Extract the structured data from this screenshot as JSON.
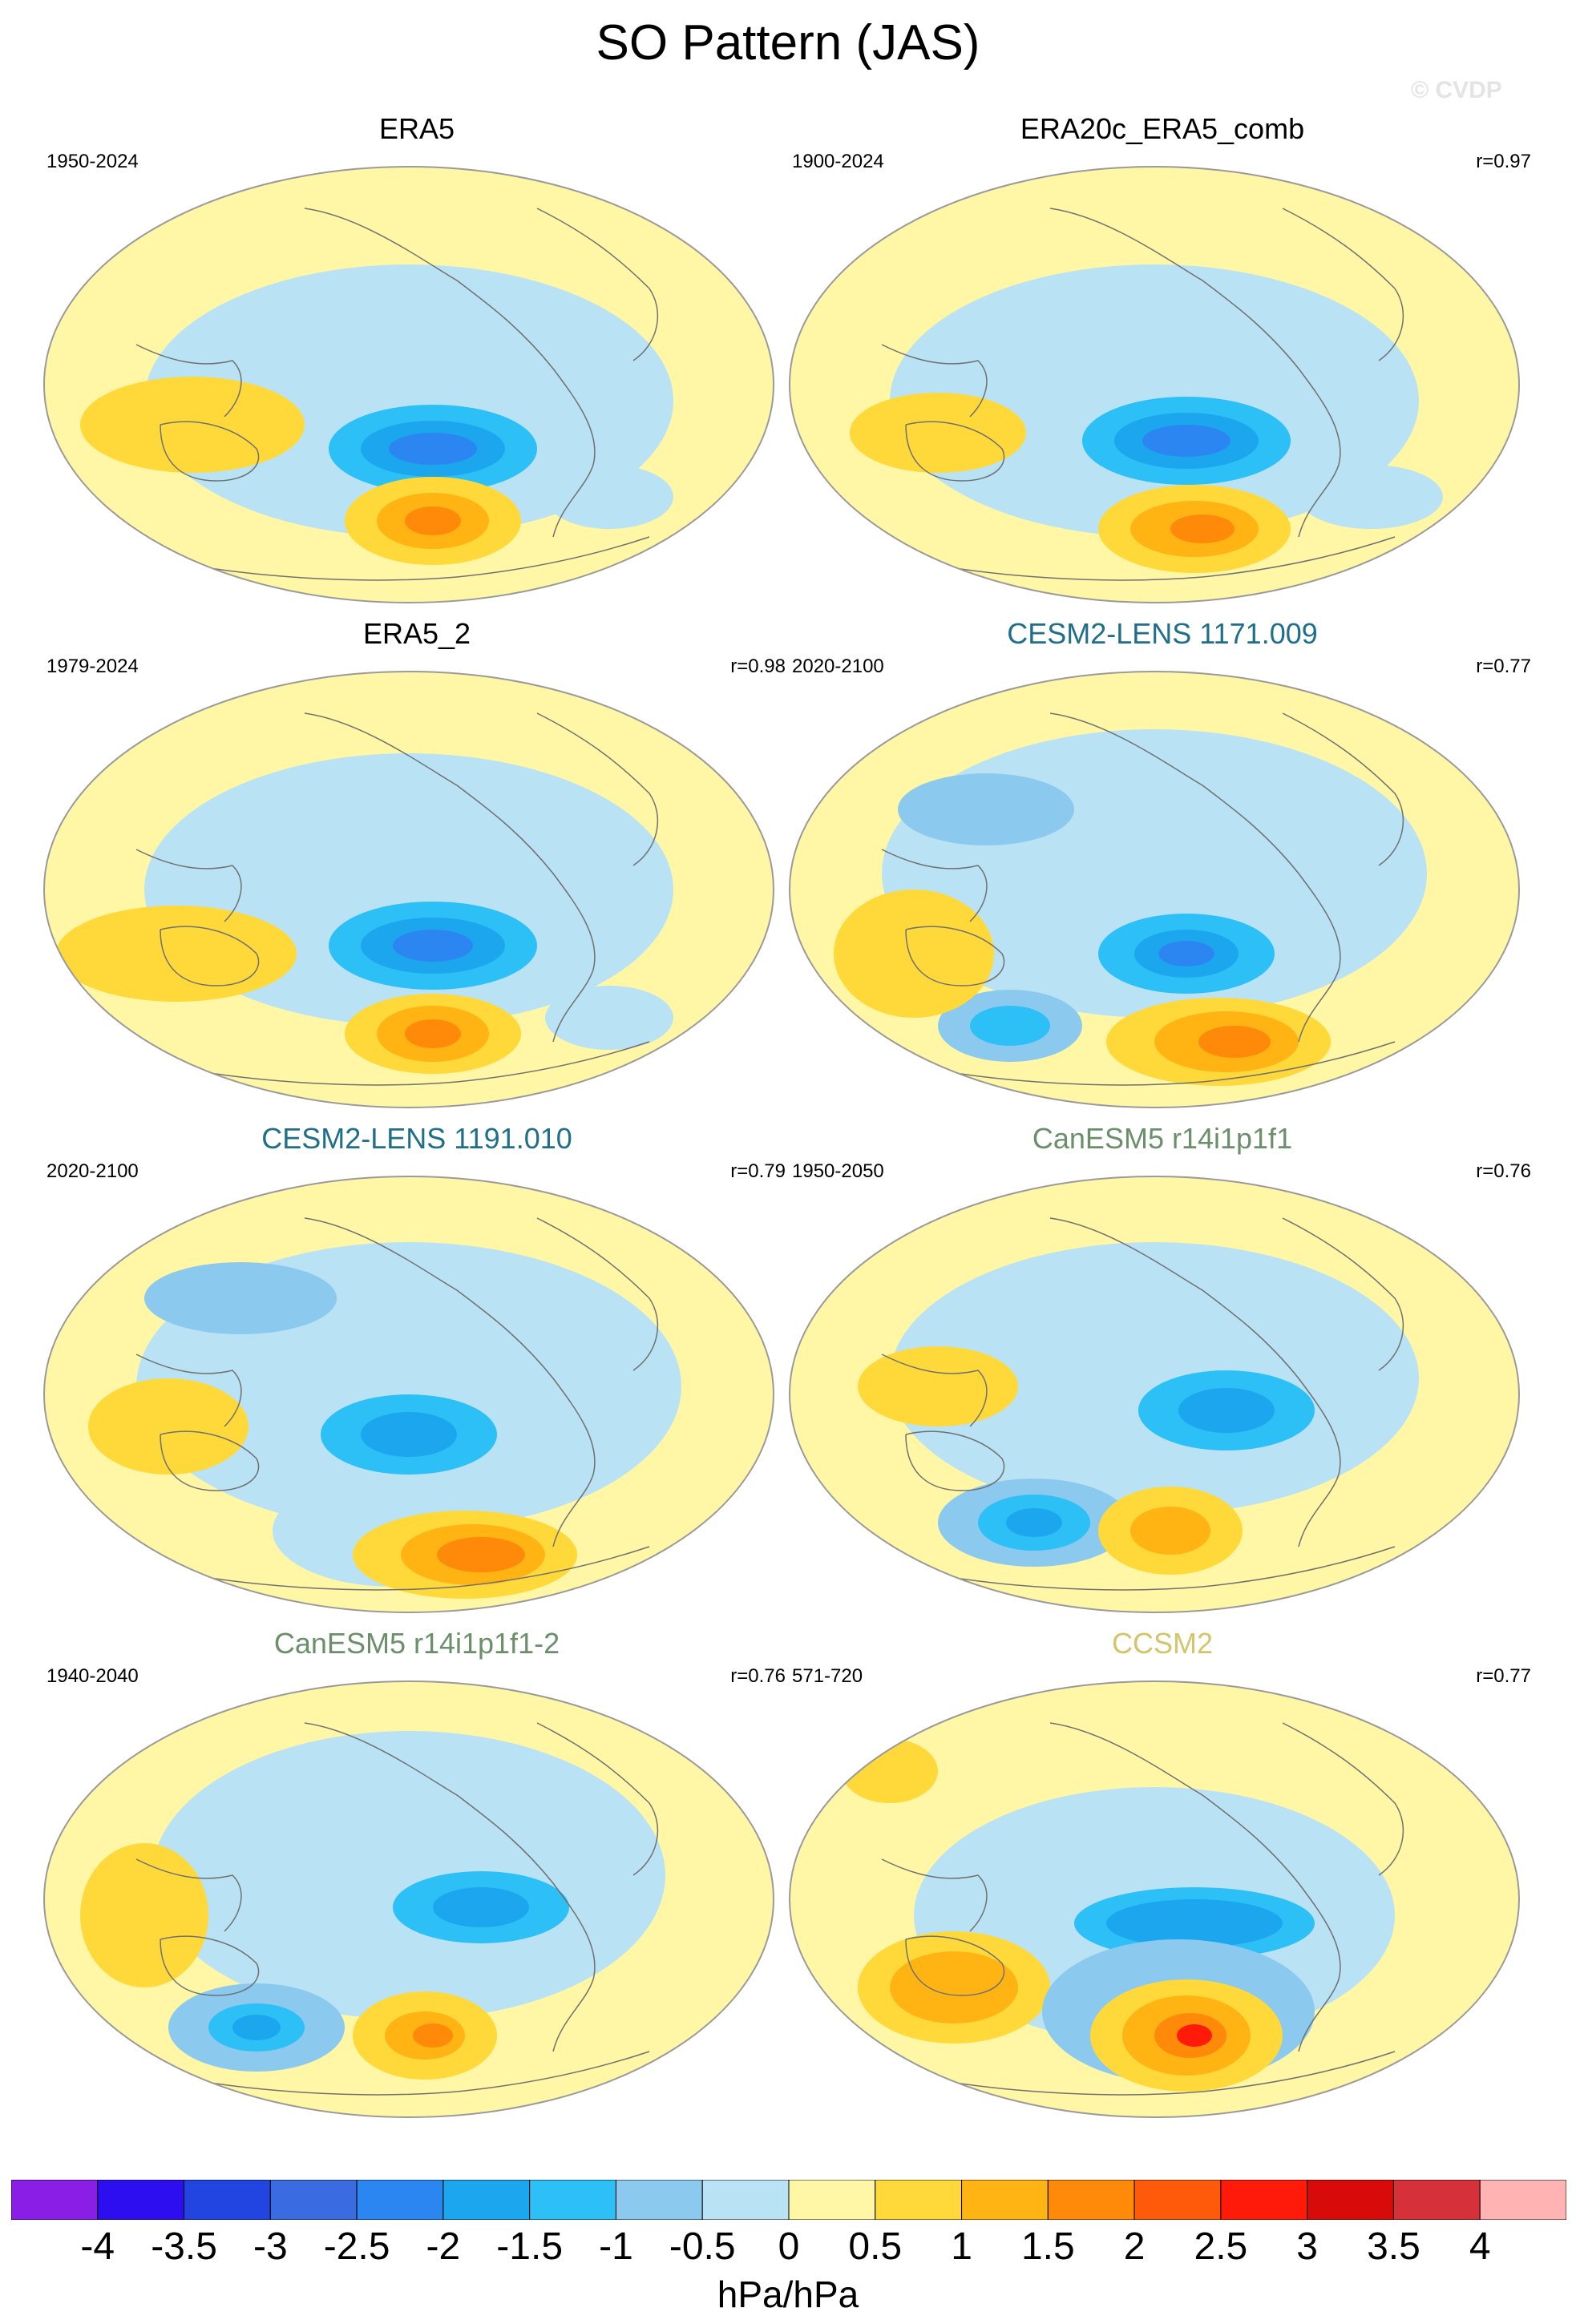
{
  "title": "SO Pattern (JAS)",
  "watermark": "© CVDP",
  "units": "hPa/hPa",
  "colors": {
    "land_line": "#707070",
    "frame": "#9a9a9a"
  },
  "colorbar": {
    "labels": [
      "-4",
      "-3.5",
      "-3",
      "-2.5",
      "-2",
      "-1.5",
      "-1",
      "-0.5",
      "0",
      "0.5",
      "1",
      "1.5",
      "2",
      "2.5",
      "3",
      "3.5",
      "4"
    ],
    "colors": [
      "#8a1ee6",
      "#2d0ef0",
      "#2244e0",
      "#3a6be0",
      "#2b86f2",
      "#1ba6ee",
      "#2cc0f6",
      "#8cc9ee",
      "#b9e2f4",
      "#fff7a6",
      "#ffd93a",
      "#ffb414",
      "#ff8a0a",
      "#ff5a0a",
      "#ff1a0a",
      "#d80a0a",
      "#d6303a",
      "#ffb3b3"
    ]
  },
  "panels": [
    {
      "title": "ERA5",
      "title_color": "#000000",
      "period": "1950-2024",
      "corr": ""
    },
    {
      "title": "ERA20c_ERA5_comb",
      "title_color": "#000000",
      "period": "1900-2024",
      "corr": "r=0.97"
    },
    {
      "title": "ERA5_2",
      "title_color": "#000000",
      "period": "1979-2024",
      "corr": "r=0.98"
    },
    {
      "title": "CESM2-LENS 1171.009",
      "title_color": "#1f6f8b",
      "period": "2020-2100",
      "corr": "r=0.77"
    },
    {
      "title": "CESM2-LENS 1191.010",
      "title_color": "#1f6f8b",
      "period": "2020-2100",
      "corr": "r=0.79"
    },
    {
      "title": "CanESM5 r14i1p1f1",
      "title_color": "#6b8f6b",
      "period": "1950-2050",
      "corr": "r=0.76"
    },
    {
      "title": "CanESM5 r14i1p1f1-2",
      "title_color": "#6b8f6b",
      "period": "1940-2040",
      "corr": "r=0.76"
    },
    {
      "title": "CCSM2",
      "title_color": "#d4c46a",
      "period": "571-720",
      "corr": "r=0.77"
    }
  ]
}
